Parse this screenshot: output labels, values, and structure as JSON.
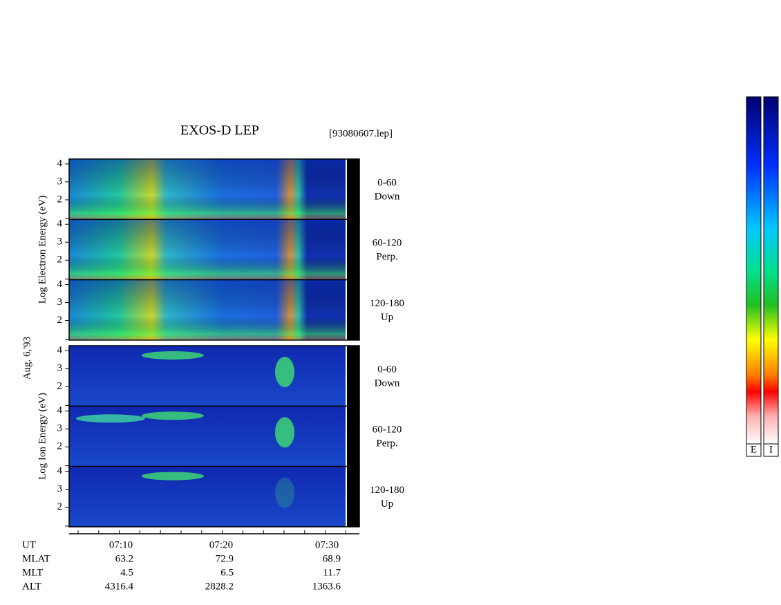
{
  "title": "EXOS-D LEP",
  "file": "[93080607.lep]",
  "date": "Aug. 6,'93",
  "groups": [
    {
      "axis_label": "Log  Electron  Energy (eV)",
      "panels": [
        {
          "angle": "0-60",
          "direction": "Down",
          "ticks": [
            "4",
            "3",
            "2"
          ]
        },
        {
          "angle": "60-120",
          "direction": "Perp.",
          "ticks": [
            "4",
            "3",
            "2"
          ]
        },
        {
          "angle": "120-180",
          "direction": "Up",
          "ticks": [
            "4",
            "3",
            "2"
          ]
        }
      ]
    },
    {
      "axis_label": "Log  Ion  Energy (eV)",
      "panels": [
        {
          "angle": "0-60",
          "direction": "Down",
          "ticks": [
            "4",
            "3",
            "2"
          ]
        },
        {
          "angle": "60-120",
          "direction": "Perp.",
          "ticks": [
            "4",
            "3",
            "2"
          ]
        },
        {
          "angle": "120-180",
          "direction": "Up",
          "ticks": [
            "4",
            "3",
            "2"
          ]
        }
      ]
    }
  ],
  "time_ticks": [
    "07:10",
    "07:20",
    "07:30"
  ],
  "ephemeris": [
    {
      "label": "UT",
      "values": []
    },
    {
      "label": "MLAT",
      "values": [
        "63.2",
        "72.9",
        "68.9"
      ]
    },
    {
      "label": "MLT",
      "values": [
        "4.5",
        "6.5",
        "11.7"
      ]
    },
    {
      "label": "ALT",
      "values": [
        "4316.4",
        "2828.2",
        "1363.6"
      ]
    }
  ],
  "colorbars": [
    "E",
    "I"
  ]
}
